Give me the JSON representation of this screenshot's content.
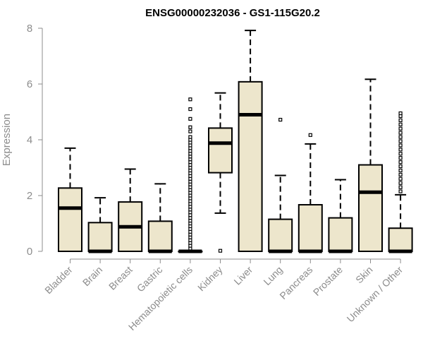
{
  "chart_data": {
    "type": "box",
    "title": "ENSG00000232036 - GS1-115G20.2",
    "xlabel": "",
    "ylabel": "Expression",
    "ylim": [
      0,
      8
    ],
    "yticks": [
      "0",
      "2",
      "4",
      "6",
      "8"
    ],
    "grid": false,
    "colors": {
      "box_fill": "#ede6cc",
      "box_stroke": "#000000",
      "axis": "#8c8c8c"
    },
    "categories": [
      "Bladder",
      "Brain",
      "Breast",
      "Gastric",
      "Hematopoietic cells",
      "Kidney",
      "Liver",
      "Lung",
      "Pancreas",
      "Prostate",
      "Skin",
      "Unknown / Other"
    ],
    "boxes": [
      {
        "category": "Bladder",
        "whisker_low": 0,
        "q1": 0,
        "median": 1.55,
        "q3": 2.27,
        "whisker_high": 3.7,
        "outliers": []
      },
      {
        "category": "Brain",
        "whisker_low": 0,
        "q1": 0,
        "median": 0,
        "q3": 1.03,
        "whisker_high": 1.92,
        "outliers": []
      },
      {
        "category": "Breast",
        "whisker_low": 0,
        "q1": 0,
        "median": 0.88,
        "q3": 1.77,
        "whisker_high": 2.95,
        "outliers": []
      },
      {
        "category": "Gastric",
        "whisker_low": 0,
        "q1": 0,
        "median": 0,
        "q3": 1.08,
        "whisker_high": 2.42,
        "outliers": []
      },
      {
        "category": "Hematopoietic cells",
        "whisker_low": 0,
        "q1": 0,
        "median": 0,
        "q3": 0,
        "whisker_high": 0,
        "outliers": [
          0.1,
          0.2,
          0.3,
          0.4,
          0.5,
          0.6,
          0.7,
          0.8,
          0.9,
          1.0,
          1.1,
          1.2,
          1.3,
          1.4,
          1.5,
          1.6,
          1.7,
          1.8,
          1.9,
          2.0,
          2.1,
          2.2,
          2.3,
          2.4,
          2.5,
          2.6,
          2.7,
          2.8,
          2.9,
          3.0,
          3.1,
          3.2,
          3.3,
          3.4,
          3.5,
          3.6,
          3.7,
          3.8,
          3.9,
          4.0,
          4.1,
          4.3,
          4.45,
          4.75,
          5.1,
          5.45
        ]
      },
      {
        "category": "Kidney",
        "whisker_low": 1.37,
        "q1": 2.82,
        "median": 3.88,
        "q3": 4.42,
        "whisker_high": 5.68,
        "outliers": [
          0.02
        ]
      },
      {
        "category": "Liver",
        "whisker_low": 0,
        "q1": 0,
        "median": 4.9,
        "q3": 6.08,
        "whisker_high": 7.92,
        "outliers": []
      },
      {
        "category": "Lung",
        "whisker_low": 0,
        "q1": 0,
        "median": 0,
        "q3": 1.15,
        "whisker_high": 2.72,
        "outliers": [
          4.72
        ]
      },
      {
        "category": "Pancreas",
        "whisker_low": 0,
        "q1": 0,
        "median": 0,
        "q3": 1.67,
        "whisker_high": 3.85,
        "outliers": [
          4.17
        ]
      },
      {
        "category": "Prostate",
        "whisker_low": 0,
        "q1": 0,
        "median": 0,
        "q3": 1.2,
        "whisker_high": 2.57,
        "outliers": []
      },
      {
        "category": "Skin",
        "whisker_low": 0,
        "q1": 0,
        "median": 2.12,
        "q3": 3.1,
        "whisker_high": 6.17,
        "outliers": []
      },
      {
        "category": "Unknown / Other",
        "whisker_low": 0,
        "q1": 0,
        "median": 0,
        "q3": 0.83,
        "whisker_high": 2.03,
        "outliers": [
          2.15,
          2.3,
          2.45,
          2.6,
          2.75,
          2.9,
          3.05,
          3.2,
          3.35,
          3.5,
          3.65,
          3.8,
          3.95,
          4.1,
          4.25,
          4.4,
          4.55,
          4.7,
          4.85,
          4.95
        ]
      }
    ]
  }
}
